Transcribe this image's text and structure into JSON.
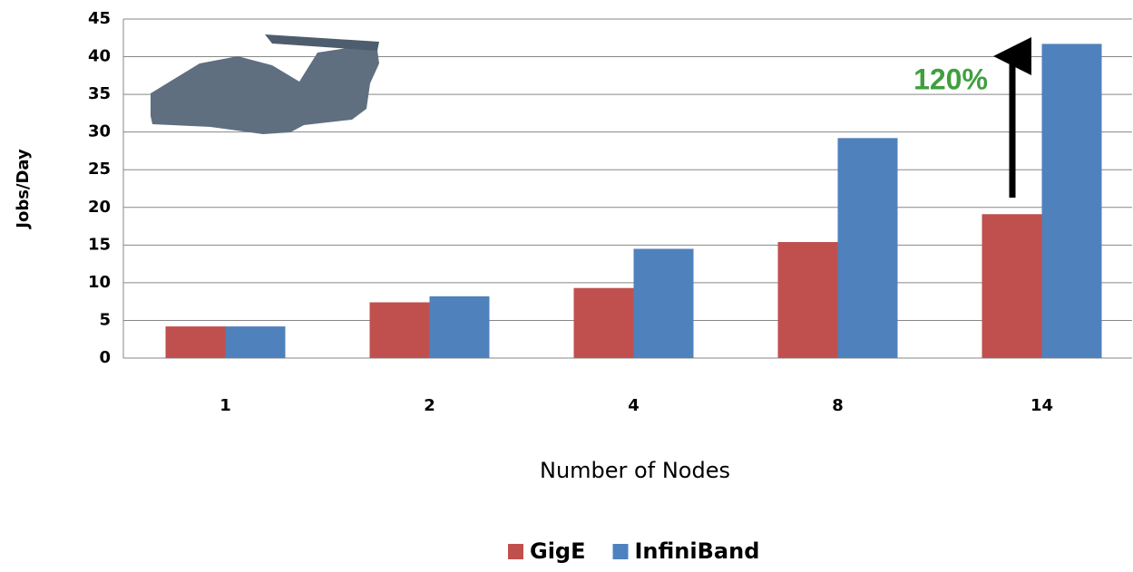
{
  "chart_data": {
    "type": "bar",
    "x_label": "Number of Nodes",
    "y_label": "Jobs/Day",
    "annotation": "120%",
    "categories": [
      "1",
      "2",
      "4",
      "8",
      "14"
    ],
    "series": [
      {
        "name": "GigE",
        "color": "#c0504d",
        "values": [
          4.2,
          7.4,
          9.3,
          15.4,
          19.1
        ]
      },
      {
        "name": "InfiniBand",
        "color": "#4f81bd",
        "values": [
          4.2,
          8.2,
          14.5,
          29.2,
          41.7
        ]
      }
    ],
    "ylim": [
      0,
      45
    ],
    "yticks": [
      0,
      5,
      10,
      15,
      20,
      25,
      30,
      35,
      40,
      45
    ],
    "grid": true
  }
}
